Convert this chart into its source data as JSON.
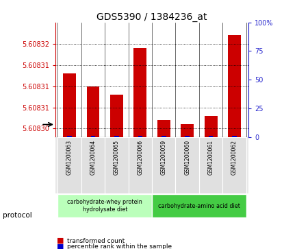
{
  "title": "GDS5390 / 1384236_at",
  "samples": [
    "GSM1200063",
    "GSM1200064",
    "GSM1200065",
    "GSM1200066",
    "GSM1200059",
    "GSM1200060",
    "GSM1200061",
    "GSM1200062"
  ],
  "red_values": [
    5.608313,
    5.60831,
    5.608308,
    5.608319,
    5.608302,
    5.608301,
    5.608303,
    5.608322
  ],
  "blue_pct": [
    1,
    1,
    1,
    1,
    1,
    1,
    1,
    1
  ],
  "ymin": 5.608298,
  "ymax": 5.608325,
  "ytick_vals": [
    5.6083,
    5.608305,
    5.60831,
    5.608315,
    5.60832
  ],
  "ytick_labs": [
    "5.60830",
    "5.60831",
    "5.60831",
    "5.60831",
    "5.60832"
  ],
  "right_yticks": [
    0,
    25,
    50,
    75,
    100
  ],
  "protocol_groups": [
    {
      "label": "carbohydrate-whey protein\nhydrolysate diet",
      "start": 0,
      "end": 4,
      "color": "#bbffbb"
    },
    {
      "label": "carbohydrate-amino acid diet",
      "start": 4,
      "end": 8,
      "color": "#44cc44"
    }
  ],
  "bar_color_red": "#cc0000",
  "bar_color_blue": "#0000cc",
  "axis_color_red": "#cc0000",
  "axis_color_blue": "#2222cc",
  "bg_color": "#ffffff",
  "title_fontsize": 10
}
